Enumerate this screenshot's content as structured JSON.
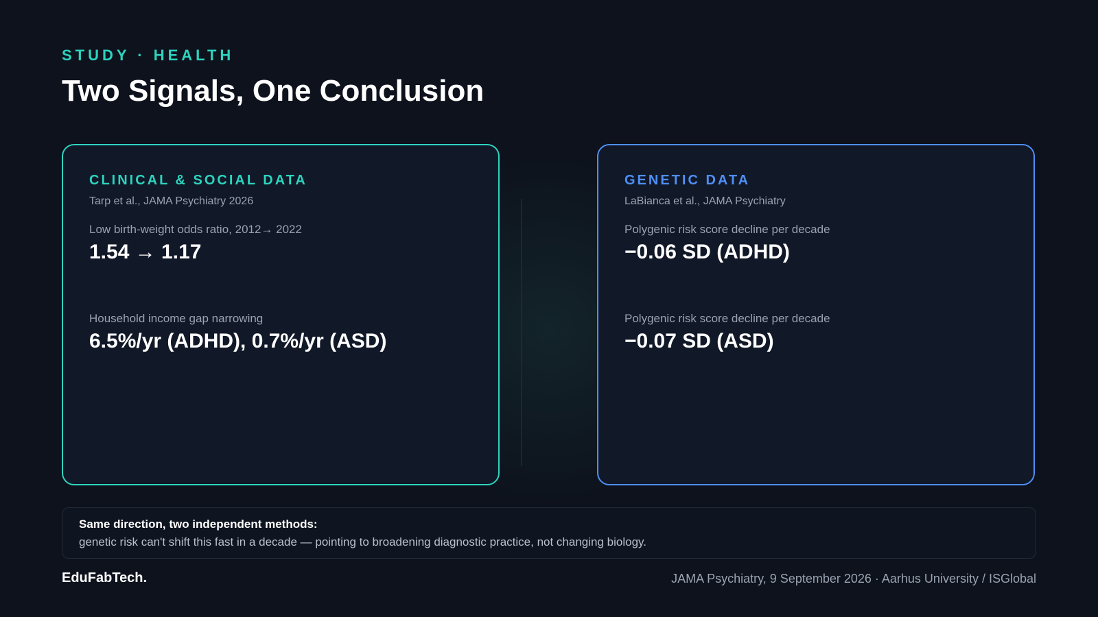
{
  "header": {
    "kicker": "STUDY · HEALTH",
    "title": "Two Signals, One Conclusion"
  },
  "cards": [
    {
      "title": "CLINICAL & SOCIAL DATA",
      "source": "Tarp et al., JAMA Psychiatry 2026",
      "stats": [
        {
          "label": "Low birth-weight odds ratio, 2012→ 2022",
          "value": "1.54 → 1.17"
        },
        {
          "label": "Household income gap narrowing",
          "value": "6.5%/yr (ADHD), 0.7%/yr (ASD)"
        }
      ]
    },
    {
      "title": "GENETIC DATA",
      "source": "LaBianca et al., JAMA Psychiatry",
      "stats": [
        {
          "label": "Polygenic risk score decline per decade",
          "value": "−0.06 SD (ADHD)"
        },
        {
          "label": "Polygenic risk score decline per decade",
          "value": "−0.07 SD (ASD)"
        }
      ]
    }
  ],
  "conclusion": {
    "lead": "Same direction, two independent methods:",
    "text": "genetic risk can't shift this fast in a decade — pointing to broadening diagnostic practice, not changing biology."
  },
  "footer": {
    "brand": "EduFabTech.",
    "source": "JAMA Psychiatry, 9 September 2026 · Aarhus University / ISGlobal"
  }
}
